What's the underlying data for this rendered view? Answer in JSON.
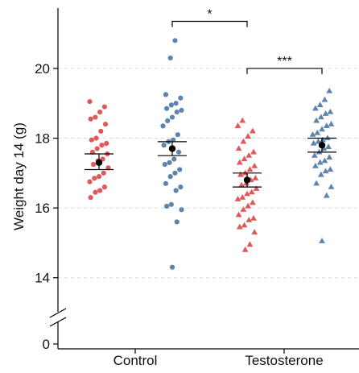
{
  "chart_data": {
    "type": "scatter",
    "title": "",
    "xlabel": "",
    "ylabel": "Weight day 14 (g)",
    "ylim": [
      14,
      21
    ],
    "y_ticks": [
      14,
      16,
      18,
      20
    ],
    "y_zero_label": "0",
    "axis_break": true,
    "grid": true,
    "categories": [
      "Control",
      "Testosterone"
    ],
    "colors": {
      "red": "#e04a4a",
      "blue": "#4f79a8",
      "mean": "#000000"
    },
    "series": [
      {
        "category": "Control",
        "marker": "circle",
        "color": "red",
        "mean": 17.3,
        "sem_low": 17.1,
        "sem_high": 17.55,
        "values": [
          19.05,
          18.9,
          18.75,
          18.6,
          18.55,
          18.4,
          18.2,
          18.0,
          17.95,
          17.85,
          17.8,
          17.7,
          17.6,
          17.55,
          17.4,
          17.35,
          17.25,
          17.15,
          17.0,
          16.9,
          16.85,
          16.75,
          16.6,
          16.5,
          16.45,
          16.3
        ]
      },
      {
        "category": "Control",
        "marker": "circle",
        "color": "blue",
        "mean": 17.7,
        "sem_low": 17.5,
        "sem_high": 17.9,
        "values": [
          20.8,
          20.3,
          19.25,
          19.15,
          19.0,
          18.95,
          18.85,
          18.8,
          18.75,
          18.6,
          18.5,
          18.35,
          18.1,
          17.95,
          17.9,
          17.8,
          17.6,
          17.4,
          17.3,
          17.25,
          17.1,
          17.0,
          16.9,
          16.7,
          16.6,
          16.5,
          16.1,
          16.05,
          15.95,
          15.6,
          14.3
        ]
      },
      {
        "category": "Testosterone",
        "marker": "triangle",
        "color": "red",
        "mean": 16.8,
        "sem_low": 16.6,
        "sem_high": 17.0,
        "values": [
          18.5,
          18.35,
          18.2,
          18.05,
          17.9,
          17.7,
          17.6,
          17.5,
          17.4,
          17.3,
          17.2,
          17.1,
          17.0,
          16.95,
          16.85,
          16.8,
          16.7,
          16.65,
          16.55,
          16.45,
          16.4,
          16.3,
          16.25,
          16.15,
          16.05,
          15.95,
          15.8,
          15.7,
          15.65,
          15.5,
          15.45,
          15.3,
          14.95,
          14.8
        ]
      },
      {
        "category": "Testosterone",
        "marker": "triangle",
        "color": "blue",
        "mean": 17.8,
        "sem_low": 17.6,
        "sem_high": 18.0,
        "values": [
          19.35,
          19.1,
          18.95,
          18.85,
          18.75,
          18.7,
          18.6,
          18.5,
          18.4,
          18.35,
          18.25,
          18.15,
          18.1,
          18.0,
          17.95,
          17.9,
          17.85,
          17.75,
          17.7,
          17.6,
          17.5,
          17.45,
          17.35,
          17.3,
          17.2,
          17.1,
          17.05,
          16.95,
          16.7,
          16.6,
          16.35,
          15.05
        ]
      }
    ],
    "significance": [
      {
        "label": "*",
        "from_series": 1,
        "to_series": 2,
        "y": 21.35
      },
      {
        "label": "***",
        "from_series": 2,
        "to_series": 3,
        "y": 20.0
      }
    ]
  }
}
